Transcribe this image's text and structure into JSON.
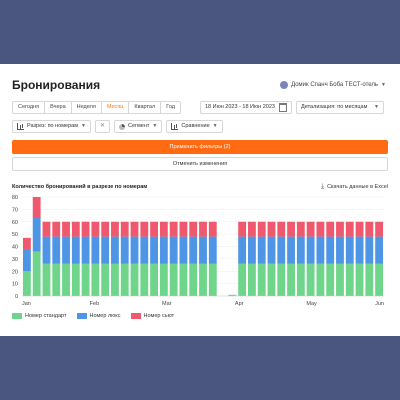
{
  "page": {
    "title": "Бронирования",
    "user": "Домик Спанч Боба ТЕСТ-отель"
  },
  "period_tabs": [
    "Сегодня",
    "Вчера",
    "Неделя",
    "Месяц",
    "Квартал",
    "Год"
  ],
  "active_tab": "Месяц",
  "date_range": "18 Июн 2023 - 18 Июн 2023",
  "detail_select": {
    "label": "Детализация: по месяцам"
  },
  "filters": {
    "breakdown": "Разрез: по номерам",
    "segment": "Сегмент",
    "compare": "Сравнение"
  },
  "buttons": {
    "apply": "Применить фильтры (2)",
    "cancel": "Отменить изменения"
  },
  "chart_header": {
    "title": "Количество бронирований в разрезе по номерам",
    "export": "Скачать данные в Excel"
  },
  "colors": {
    "accent": "#ff6a13",
    "standard": "#6fd58a",
    "deluxe": "#4f95e6",
    "suite": "#f0596d"
  },
  "chart_data": {
    "type": "bar",
    "stacked": true,
    "ylim": [
      0,
      80
    ],
    "yticks": [
      0,
      10,
      20,
      30,
      40,
      50,
      60,
      70,
      80
    ],
    "xticks": [
      "Jan",
      "Feb",
      "Mar",
      "Apr",
      "May",
      "Jun"
    ],
    "x": [
      1,
      2,
      3,
      4,
      5,
      6,
      7,
      8,
      9,
      10,
      11,
      12,
      13,
      14,
      15,
      16,
      17,
      18,
      19,
      20,
      21,
      22,
      23,
      24,
      25,
      26,
      27,
      28,
      29,
      30,
      31,
      32,
      33,
      34,
      35,
      36,
      37
    ],
    "series": [
      {
        "name": "Номер стандарт",
        "values": [
          20,
          36,
          26,
          26,
          26,
          26,
          26,
          26,
          26,
          26,
          26,
          26,
          26,
          26,
          26,
          26,
          26,
          26,
          26,
          26,
          0,
          1,
          26,
          26,
          26,
          26,
          26,
          26,
          26,
          26,
          26,
          26,
          26,
          26,
          26,
          26,
          26
        ]
      },
      {
        "name": "Номер люкс",
        "values": [
          18,
          27,
          22,
          22,
          22,
          22,
          22,
          22,
          22,
          22,
          22,
          22,
          22,
          22,
          22,
          22,
          22,
          22,
          22,
          22,
          0,
          0,
          22,
          22,
          22,
          22,
          22,
          22,
          22,
          22,
          22,
          22,
          22,
          22,
          22,
          22,
          22
        ]
      },
      {
        "name": "Номер сьют",
        "values": [
          9,
          17,
          12,
          12,
          12,
          12,
          12,
          12,
          12,
          12,
          12,
          12,
          12,
          12,
          12,
          12,
          12,
          12,
          12,
          12,
          0,
          0,
          12,
          12,
          12,
          12,
          12,
          12,
          12,
          12,
          12,
          12,
          12,
          12,
          12,
          12,
          12
        ]
      }
    ]
  }
}
